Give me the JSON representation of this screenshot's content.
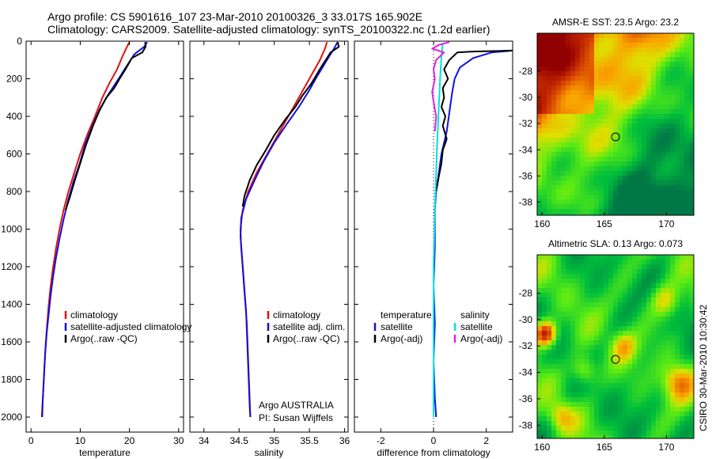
{
  "header": {
    "line1": "Argo profile: CS 5901616_107 23-Mar-2010 20100326_3 33.017S 165.902E",
    "line2": "Climatology: CARS2009. Satellite-adjusted climatology: synTS_20100322.nc (1.2d earlier)"
  },
  "credit": {
    "org": "Argo AUSTRALIA",
    "pi": "PI: Susan Wijffels",
    "stamp": "CSIRO 30-Mar-2010 10:30:42"
  },
  "colors": {
    "climatology": "#e01010",
    "satellite": "#1010e0",
    "argo": "#000000",
    "salinity_satellite": "#00e0e0",
    "salinity_argo": "#e020e0"
  },
  "chart_data": [
    {
      "type": "line",
      "id": "temperature",
      "xlabel": "temperature",
      "ylabel": "",
      "xlim": [
        -1,
        31
      ],
      "ylim": [
        2080,
        0
      ],
      "xticks": [
        0,
        10,
        20,
        30
      ],
      "yticks": [
        0,
        200,
        400,
        600,
        800,
        1000,
        1200,
        1400,
        1600,
        1800,
        2000
      ],
      "legend": [
        "climatology",
        "satellite-adjusted climatology",
        "Argo(..raw -QC)"
      ],
      "series": [
        {
          "name": "climatology",
          "color": "#e01010",
          "points": [
            [
              20.0,
              5
            ],
            [
              19.5,
              30
            ],
            [
              18.6,
              80
            ],
            [
              17.5,
              150
            ],
            [
              16.0,
              220
            ],
            [
              14.5,
              300
            ],
            [
              13.0,
              400
            ],
            [
              11.4,
              500
            ],
            [
              10.0,
              600
            ],
            [
              8.8,
              700
            ],
            [
              7.6,
              800
            ],
            [
              6.6,
              900
            ],
            [
              5.8,
              1000
            ],
            [
              5.1,
              1100
            ],
            [
              4.5,
              1200
            ],
            [
              4.0,
              1300
            ],
            [
              3.6,
              1400
            ],
            [
              3.3,
              1500
            ],
            [
              3.0,
              1600
            ],
            [
              2.8,
              1700
            ],
            [
              2.6,
              1800
            ],
            [
              2.4,
              1900
            ],
            [
              2.3,
              2000
            ]
          ]
        },
        {
          "name": "satellite-adjusted climatology",
          "color": "#1010e0",
          "points": [
            [
              23.6,
              5
            ],
            [
              23.0,
              30
            ],
            [
              21.0,
              70
            ],
            [
              19.5,
              130
            ],
            [
              17.8,
              200
            ],
            [
              15.8,
              280
            ],
            [
              14.0,
              360
            ],
            [
              12.5,
              450
            ],
            [
              11.0,
              550
            ],
            [
              9.9,
              650
            ],
            [
              8.6,
              750
            ],
            [
              7.5,
              850
            ],
            [
              6.6,
              950
            ],
            [
              5.8,
              1050
            ],
            [
              5.1,
              1150
            ],
            [
              4.5,
              1250
            ],
            [
              4.0,
              1350
            ],
            [
              3.6,
              1450
            ],
            [
              3.2,
              1550
            ],
            [
              2.9,
              1650
            ],
            [
              2.7,
              1750
            ],
            [
              2.5,
              1850
            ],
            [
              2.3,
              1950
            ],
            [
              2.2,
              2000
            ]
          ]
        },
        {
          "name": "Argo(..raw -QC)",
          "color": "#000000",
          "points": [
            [
              23.2,
              5
            ],
            [
              23.3,
              30
            ],
            [
              22.6,
              60
            ],
            [
              20.5,
              90
            ],
            [
              19.4,
              140
            ],
            [
              18.0,
              200
            ],
            [
              16.9,
              250
            ],
            [
              15.3,
              300
            ],
            [
              13.9,
              370
            ],
            [
              12.6,
              450
            ],
            [
              11.2,
              550
            ],
            [
              10.0,
              650
            ],
            [
              8.9,
              740
            ],
            [
              7.9,
              830
            ],
            [
              7.0,
              900
            ]
          ]
        }
      ]
    },
    {
      "type": "line",
      "id": "salinity",
      "xlabel": "salinity",
      "ylabel": "",
      "xlim": [
        33.8,
        36.05
      ],
      "ylim": [
        2080,
        0
      ],
      "xticks": [
        34,
        34.5,
        35,
        35.5,
        36
      ],
      "yticks": [
        0,
        200,
        400,
        600,
        800,
        1000,
        1200,
        1400,
        1600,
        1800,
        2000
      ],
      "legend": [
        "climatology",
        "satellite adj. clim.",
        "Argo(..raw -QC)"
      ],
      "series": [
        {
          "name": "climatology",
          "color": "#e01010",
          "points": [
            [
              35.75,
              5
            ],
            [
              35.72,
              40
            ],
            [
              35.65,
              100
            ],
            [
              35.5,
              200
            ],
            [
              35.35,
              300
            ],
            [
              35.2,
              400
            ],
            [
              35.05,
              500
            ],
            [
              34.9,
              600
            ],
            [
              34.75,
              700
            ],
            [
              34.63,
              800
            ],
            [
              34.55,
              900
            ],
            [
              34.52,
              1000
            ],
            [
              34.53,
              1100
            ],
            [
              34.55,
              1200
            ],
            [
              34.57,
              1300
            ],
            [
              34.59,
              1400
            ],
            [
              34.61,
              1500
            ],
            [
              34.62,
              1600
            ],
            [
              34.63,
              1700
            ],
            [
              34.64,
              1800
            ],
            [
              34.65,
              1900
            ],
            [
              34.66,
              2000
            ]
          ]
        },
        {
          "name": "satellite adj. clim.",
          "color": "#1010e0",
          "points": [
            [
              35.9,
              5
            ],
            [
              35.85,
              40
            ],
            [
              35.75,
              100
            ],
            [
              35.62,
              180
            ],
            [
              35.5,
              260
            ],
            [
              35.35,
              350
            ],
            [
              35.18,
              440
            ],
            [
              35.0,
              540
            ],
            [
              34.85,
              640
            ],
            [
              34.72,
              740
            ],
            [
              34.6,
              840
            ],
            [
              34.53,
              940
            ],
            [
              34.52,
              1040
            ],
            [
              34.54,
              1140
            ],
            [
              34.56,
              1240
            ],
            [
              34.58,
              1340
            ],
            [
              34.6,
              1440
            ],
            [
              34.61,
              1540
            ],
            [
              34.62,
              1640
            ],
            [
              34.63,
              1740
            ],
            [
              34.64,
              1840
            ],
            [
              34.65,
              1940
            ],
            [
              34.66,
              2000
            ]
          ]
        },
        {
          "name": "Argo(..raw -QC)",
          "color": "#000000",
          "points": [
            [
              35.9,
              5
            ],
            [
              35.92,
              30
            ],
            [
              35.8,
              60
            ],
            [
              35.75,
              90
            ],
            [
              35.68,
              130
            ],
            [
              35.6,
              180
            ],
            [
              35.52,
              230
            ],
            [
              35.4,
              290
            ],
            [
              35.3,
              350
            ],
            [
              35.15,
              420
            ],
            [
              35.0,
              500
            ],
            [
              34.88,
              580
            ],
            [
              34.75,
              660
            ],
            [
              34.65,
              740
            ],
            [
              34.58,
              820
            ],
            [
              34.55,
              880
            ]
          ]
        }
      ]
    },
    {
      "type": "line",
      "id": "difference",
      "xlabel": "difference from climatology",
      "ylabel": "",
      "xlim": [
        -3,
        3
      ],
      "ylim": [
        2080,
        0
      ],
      "xticks": [
        -2,
        0,
        2
      ],
      "yticks": [
        0,
        200,
        400,
        600,
        800,
        1000,
        1200,
        1400,
        1600,
        1800,
        2000
      ],
      "legend_left_title": "temperature",
      "legend_right_title": "salinity",
      "legend": [
        "satellite",
        "Argo(-adj)",
        "satellite",
        "Argo(-adj)"
      ],
      "series": [
        {
          "name": "temperature satellite",
          "color": "#1010e0",
          "points": [
            [
              3.0,
              50
            ],
            [
              2.2,
              60
            ],
            [
              1.5,
              90
            ],
            [
              1.0,
              140
            ],
            [
              0.8,
              200
            ],
            [
              0.7,
              280
            ],
            [
              0.6,
              380
            ],
            [
              0.5,
              480
            ],
            [
              0.3,
              600
            ],
            [
              0.2,
              700
            ],
            [
              0.1,
              800
            ],
            [
              0.05,
              900
            ],
            [
              0.05,
              1100
            ],
            [
              0.0,
              1300
            ],
            [
              0.05,
              1500
            ],
            [
              0.0,
              1700
            ],
            [
              0.05,
              1900
            ],
            [
              0.1,
              2000
            ]
          ]
        },
        {
          "name": "temperature Argo(-adj)",
          "color": "#000000",
          "points": [
            [
              3.0,
              50
            ],
            [
              1.5,
              55
            ],
            [
              0.9,
              60
            ],
            [
              0.6,
              100
            ],
            [
              0.4,
              150
            ],
            [
              0.55,
              200
            ],
            [
              0.35,
              250
            ],
            [
              0.4,
              300
            ],
            [
              0.3,
              350
            ],
            [
              0.45,
              400
            ],
            [
              0.35,
              450
            ],
            [
              0.5,
              520
            ],
            [
              0.35,
              580
            ],
            [
              0.3,
              650
            ],
            [
              0.2,
              720
            ],
            [
              0.1,
              800
            ]
          ]
        },
        {
          "name": "salinity satellite",
          "color": "#00e0e0",
          "points": [
            [
              0.35,
              10
            ],
            [
              0.3,
              80
            ],
            [
              0.25,
              200
            ],
            [
              0.2,
              350
            ],
            [
              0.15,
              500
            ],
            [
              0.1,
              700
            ],
            [
              0.05,
              900
            ],
            [
              0.0,
              1200
            ],
            [
              0.0,
              1500
            ],
            [
              0.0,
              1800
            ],
            [
              0.0,
              2000
            ]
          ]
        },
        {
          "name": "salinity Argo(-adj)",
          "color": "#e020e0",
          "points": [
            [
              0.6,
              5
            ],
            [
              0.2,
              20
            ],
            [
              -0.05,
              40
            ],
            [
              0.4,
              60
            ],
            [
              0.1,
              100
            ],
            [
              0.0,
              150
            ],
            [
              0.05,
              200
            ],
            [
              -0.05,
              270
            ],
            [
              0.0,
              320
            ],
            [
              0.1,
              400
            ],
            [
              0.05,
              480
            ]
          ]
        }
      ]
    },
    {
      "type": "heatmap",
      "id": "sst_map",
      "title": "AMSR-E SST: 23.5 Argo: 23.2",
      "xlim": [
        159.6,
        172.2
      ],
      "ylim": [
        -39,
        -25.1
      ],
      "xticks": [
        160,
        165,
        170
      ],
      "yticks": [
        -28,
        -30,
        -32,
        -34,
        -36,
        -38
      ],
      "marker": {
        "lon": 165.902,
        "lat": -33.017
      }
    },
    {
      "type": "heatmap",
      "id": "sla_map",
      "title": "Altimetric SLA: 0.13 Argo: 0.073",
      "xlim": [
        159.6,
        172.2
      ],
      "ylim": [
        -39,
        -25.1
      ],
      "xticks": [
        160,
        165,
        170
      ],
      "yticks": [
        -28,
        -30,
        -32,
        -34,
        -36,
        -38
      ],
      "marker": {
        "lon": 165.902,
        "lat": -33.017
      }
    }
  ]
}
